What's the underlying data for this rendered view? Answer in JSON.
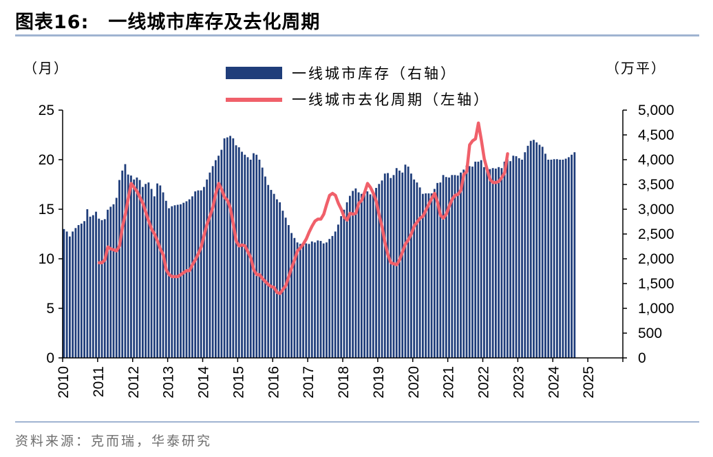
{
  "header": {
    "label": "图表16:",
    "title": "一线城市库存及去化周期"
  },
  "footer": {
    "source": "资料来源：克而瑞，华泰研究"
  },
  "colors": {
    "bars": "#1f3d7a",
    "line": "#f0606a",
    "rule": "#9fb3d1"
  },
  "chart_data": {
    "type": "bar+line",
    "title": "一线城市库存及去化周期",
    "left_axis": {
      "unit_label": "（月）",
      "ylim": [
        0,
        25
      ],
      "ticks": [
        "0",
        "5",
        "10",
        "15",
        "20",
        "25"
      ]
    },
    "right_axis": {
      "unit_label": "（万平）",
      "ylim": [
        0,
        5000
      ],
      "ticks": [
        "0",
        "500",
        "1,000",
        "1,500",
        "2,000",
        "2,500",
        "3,000",
        "3,500",
        "4,000",
        "4,500",
        "5,000"
      ]
    },
    "x_axis": {
      "start": 2010.0,
      "end": 2026.0,
      "tick_labels": [
        "2010",
        "2011",
        "2012",
        "2013",
        "2014",
        "2015",
        "2016",
        "2017",
        "2018",
        "2019",
        "2020",
        "2021",
        "2022",
        "2023",
        "2024",
        "2025"
      ]
    },
    "legend": {
      "placement": "top-center",
      "bars_label": "一线城市库存（右轴）",
      "line_label": "一线城市去化周期（左轴）"
    },
    "series": [
      {
        "name": "一线城市库存（右轴）",
        "type": "bar",
        "axis": "right",
        "start": "2010-01",
        "interval": "month",
        "values": [
          2600,
          2550,
          2450,
          2550,
          2620,
          2680,
          2710,
          2760,
          3000,
          2850,
          2880,
          2950,
          2810,
          2780,
          2800,
          2990,
          3050,
          3100,
          3230,
          3590,
          3780,
          3910,
          3700,
          3680,
          3600,
          3640,
          3590,
          3450,
          3510,
          3540,
          3410,
          3260,
          3520,
          3480,
          3340,
          3170,
          3020,
          3060,
          3080,
          3090,
          3100,
          3130,
          3160,
          3200,
          3260,
          3360,
          3380,
          3380,
          3450,
          3600,
          3740,
          3870,
          3990,
          4080,
          4200,
          4430,
          4450,
          4480,
          4430,
          4290,
          4250,
          4160,
          4100,
          4050,
          4000,
          4130,
          4100,
          4000,
          3840,
          3660,
          3490,
          3390,
          3310,
          3200,
          3140,
          2970,
          2830,
          2680,
          2520,
          2420,
          2330,
          2300,
          2280,
          2310,
          2300,
          2350,
          2330,
          2370,
          2360,
          2310,
          2330,
          2400,
          2460,
          2550,
          2690,
          2860,
          2990,
          3140,
          3270,
          3370,
          3420,
          3340,
          3310,
          3360,
          3360,
          3300,
          3300,
          3430,
          3510,
          3580,
          3720,
          3730,
          3630,
          3690,
          3830,
          3780,
          3740,
          3900,
          3860,
          3720,
          3600,
          3540,
          3440,
          3310,
          3320,
          3320,
          3320,
          3410,
          3530,
          3540,
          3690,
          3650,
          3640,
          3690,
          3690,
          3680,
          3740,
          3800,
          3880,
          3870,
          3860,
          3960,
          3960,
          3990,
          3850,
          3770,
          3810,
          3830,
          3820,
          3850,
          3830,
          3960,
          4010,
          3970,
          4080,
          4070,
          4030,
          4000,
          4150,
          4280,
          4380,
          4400,
          4350,
          4300,
          4260,
          4120,
          4000,
          4000,
          4010,
          4010,
          4000,
          4000,
          4020,
          4050,
          4100,
          4150
        ]
      },
      {
        "name": "一线城市去化周期（左轴）",
        "type": "line",
        "axis": "left",
        "start": "2011-01",
        "interval": "month",
        "values": [
          9.6,
          9.6,
          9.9,
          11.2,
          11.0,
          10.9,
          10.8,
          11.3,
          13.2,
          14.5,
          16.1,
          17.6,
          17.2,
          16.8,
          16.2,
          15.6,
          14.7,
          13.8,
          13.0,
          12.5,
          11.8,
          11.0,
          10.4,
          8.9,
          8.4,
          8.2,
          8.2,
          8.2,
          8.4,
          8.6,
          8.8,
          8.8,
          9.4,
          9.9,
          10.5,
          11.2,
          12.4,
          13.5,
          14.3,
          15.2,
          16.6,
          17.6,
          17.0,
          16.2,
          15.9,
          15.1,
          13.5,
          11.8,
          11.3,
          11.4,
          11.3,
          10.7,
          10.1,
          8.9,
          8.4,
          8.4,
          8.0,
          7.7,
          7.4,
          7.2,
          7.1,
          6.6,
          6.5,
          6.9,
          7.3,
          8.2,
          9.1,
          9.9,
          10.8,
          11.1,
          11.5,
          12.0,
          12.7,
          13.3,
          13.8,
          14.0,
          14.0,
          14.5,
          15.5,
          16.4,
          16.6,
          16.4,
          15.6,
          15.0,
          14.2,
          13.9,
          14.6,
          14.5,
          14.6,
          15.6,
          15.9,
          16.7,
          17.6,
          17.2,
          16.6,
          15.8,
          14.4,
          13.2,
          11.6,
          10.4,
          9.6,
          9.5,
          9.4,
          9.9,
          10.7,
          11.5,
          11.9,
          12.5,
          13.3,
          13.7,
          14.1,
          14.3,
          14.9,
          15.5,
          16.1,
          16.6,
          15.7,
          14.4,
          14.1,
          14.5,
          15.3,
          16.0,
          16.4,
          16.5,
          16.9,
          18.5,
          18.8,
          21.5,
          21.9,
          22.1,
          23.7,
          22.0,
          20.1,
          19.0,
          18.0,
          17.7,
          17.7,
          17.8,
          18.2,
          18.7,
          20.6
        ]
      }
    ]
  }
}
